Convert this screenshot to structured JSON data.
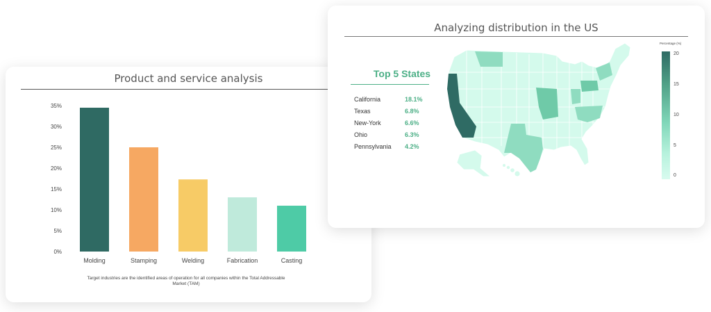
{
  "left_card": {
    "title": "Product and service analysis",
    "footnote": "Target industries are the identified areas of operation for all companies within the Total Addressable Market (TAM)"
  },
  "right_card": {
    "title": "Analyzing distribution in the US",
    "top5": {
      "title": "Top 5 States",
      "rows": [
        {
          "state": "California",
          "value": "18.1%"
        },
        {
          "state": "Texas",
          "value": "6.8%"
        },
        {
          "state": "New-York",
          "value": "6.6%"
        },
        {
          "state": "Ohio",
          "value": "6.3%"
        },
        {
          "state": "Pennsylvania",
          "value": "4.2%"
        }
      ]
    },
    "legend": {
      "title": "Percentage (%)",
      "ticks": [
        "20",
        "15",
        "10",
        "5",
        "0"
      ]
    }
  },
  "chart_data": [
    {
      "type": "bar",
      "title": "Product and service analysis",
      "categories": [
        "Molding",
        "Stamping",
        "Welding",
        "Fabrication",
        "Casting"
      ],
      "values": [
        34.5,
        25,
        17.3,
        13,
        11
      ],
      "colors": [
        "#2f6a63",
        "#f6a862",
        "#f7cb66",
        "#bfeadb",
        "#4ecba6"
      ],
      "yticks": [
        "0%",
        "5%",
        "10%",
        "15%",
        "20%",
        "25%",
        "30%",
        "35%"
      ],
      "ylim": [
        0,
        35
      ],
      "grid": false
    },
    {
      "type": "choropleth",
      "title": "Analyzing distribution in the US",
      "scale_label": "Percentage (%)",
      "scale_range": [
        0,
        20
      ],
      "colors": {
        "low": "#d8fbef",
        "high": "#2f6b64"
      }
    }
  ]
}
